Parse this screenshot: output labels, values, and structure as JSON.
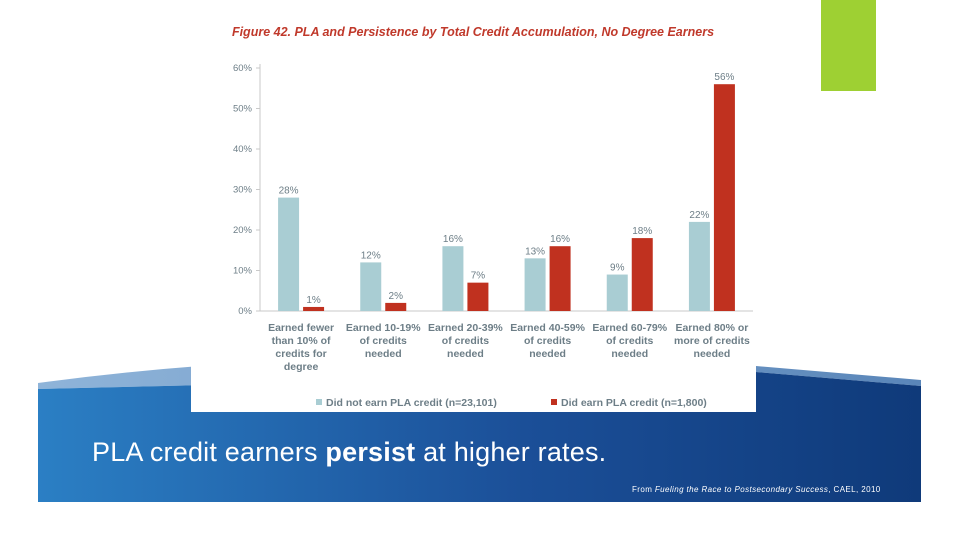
{
  "colors": {
    "accent_green": "#9ed033",
    "title_red": "#c0392b",
    "series_light_blue": "#a9cdd3",
    "series_red": "#c0311f",
    "banner_blue_dark": "#0f3a7a",
    "banner_blue_light": "#2b7fc4"
  },
  "caption": {
    "part1": "PLA credit earners ",
    "bold": "persist",
    "part2": " at higher rates."
  },
  "source": {
    "prefix": "From ",
    "title": "Fueling the Race to Postsecondary Success",
    "suffix": ", CAEL, 2010"
  },
  "chart_data": {
    "type": "bar",
    "title": "Figure 42. PLA and Persistence by Total Credit Accumulation, No Degree Earners",
    "categories": [
      [
        "Earned fewer",
        "than 10% of",
        "credits for",
        "degree"
      ],
      [
        "Earned 10-19%",
        "of credits",
        "needed"
      ],
      [
        "Earned 20-39%",
        "of credits",
        "needed"
      ],
      [
        "Earned 40-59%",
        "of credits",
        "needed"
      ],
      [
        "Earned 60-79%",
        "of credits",
        "needed"
      ],
      [
        "Earned 80% or",
        "more of credits",
        "needed"
      ]
    ],
    "series": [
      {
        "name": "Did not earn PLA credit (n=23,101)",
        "color": "#a9cdd3",
        "values": [
          28,
          12,
          16,
          13,
          9,
          22
        ],
        "labels": [
          "28%",
          "12%",
          "16%",
          "13%",
          "9%",
          "22%"
        ]
      },
      {
        "name": "Did earn PLA credit (n=1,800)",
        "color": "#c0311f",
        "values": [
          1,
          2,
          7,
          16,
          18,
          56
        ],
        "labels": [
          "1%",
          "2%",
          "7%",
          "16%",
          "18%",
          "56%"
        ]
      }
    ],
    "yticks": [
      "0%",
      "10%",
      "20%",
      "30%",
      "40%",
      "50%",
      "60%"
    ],
    "ylim": [
      0,
      60
    ],
    "legend": "bottom",
    "grid": false
  }
}
